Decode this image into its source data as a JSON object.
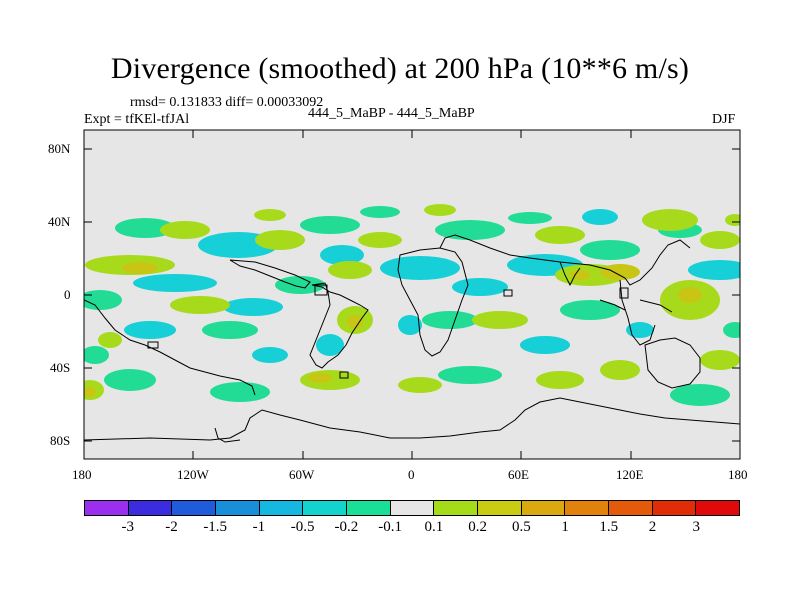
{
  "title": "Divergence (smoothed) at 200 hPa (10**6 m/s)",
  "stats_line": "rmsd= 0.131833 diff= 0.00033092",
  "expt_label": "Expt = tfKEl-tfJAl",
  "center_label": "444_5_MaBP - 444_5_MaBP",
  "season_label": "DJF",
  "lat_ticks": [
    "80N",
    "40N",
    "0",
    "40S",
    "80S"
  ],
  "lon_ticks": [
    "180",
    "120W",
    "60W",
    "0",
    "60E",
    "120E",
    "180"
  ],
  "colorbar": {
    "colors": [
      "#9a2ff0",
      "#3b2ce0",
      "#1e5cdb",
      "#1a8fd9",
      "#17b8e0",
      "#13d4cc",
      "#1adf96",
      "#e6e6e6",
      "#a5dc1a",
      "#c9cc12",
      "#d9a90f",
      "#e0820c",
      "#e35a0a",
      "#e02d08",
      "#e00a0a"
    ],
    "labels": [
      "-3",
      "-2",
      "-1.5",
      "-1",
      "-0.5",
      "-0.2",
      "-0.1",
      "0.1",
      "0.2",
      "0.5",
      "1",
      "1.5",
      "2",
      "3"
    ]
  }
}
